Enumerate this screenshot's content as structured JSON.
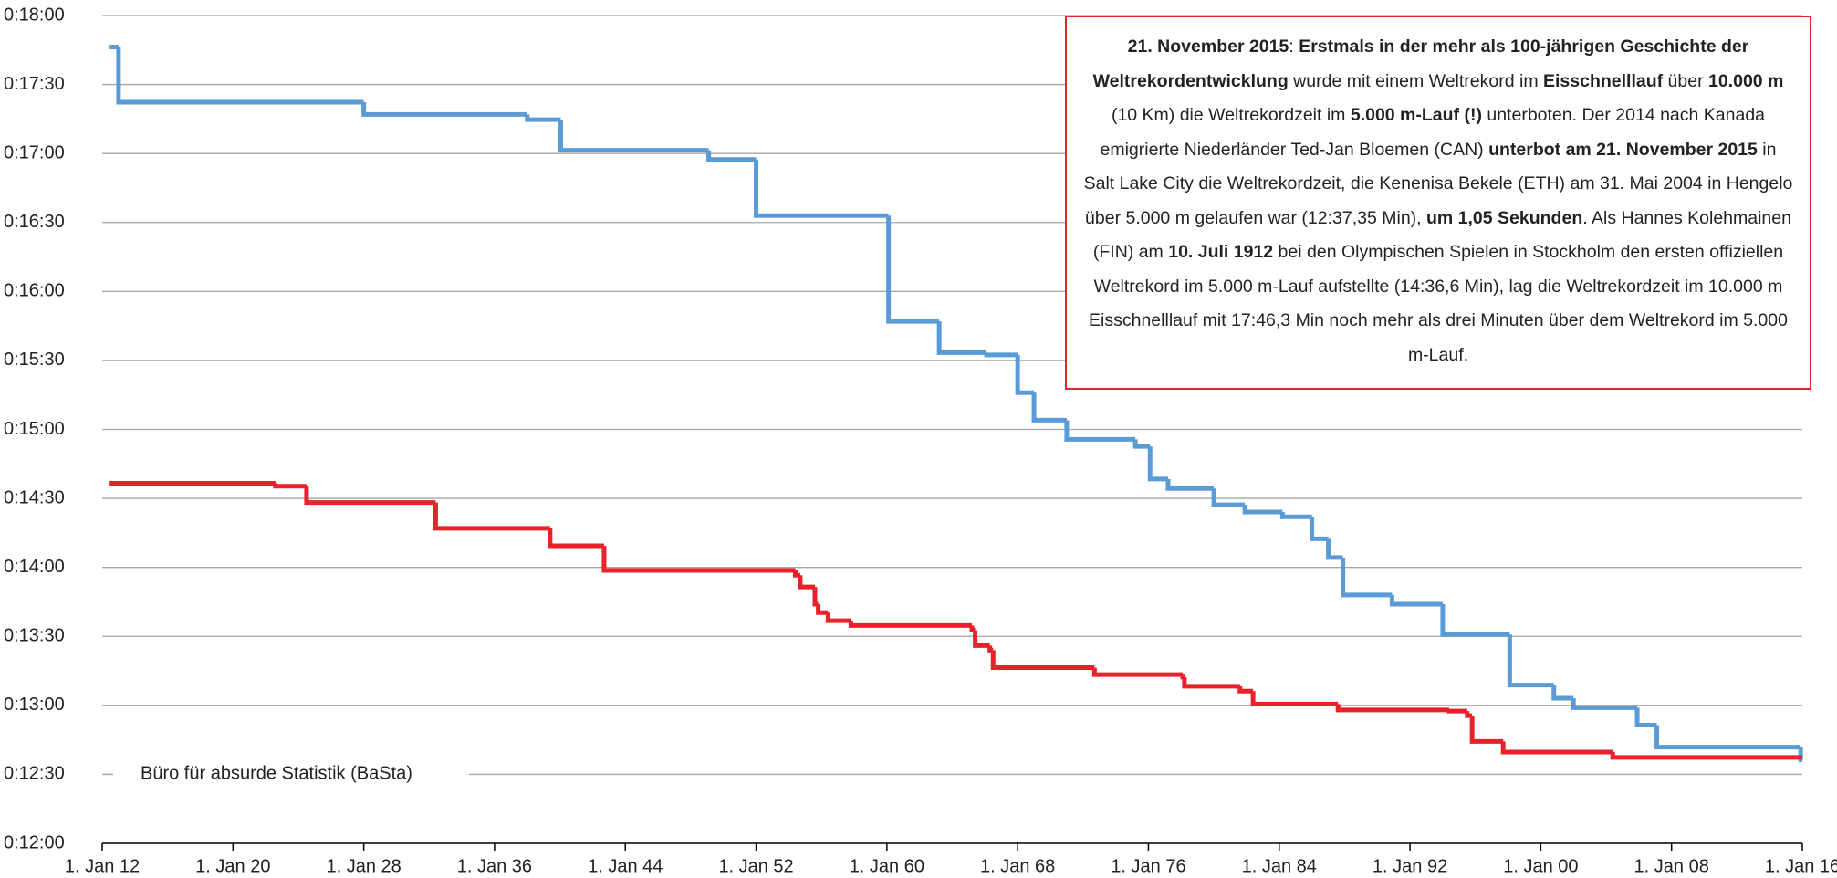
{
  "chart_data": {
    "type": "step-line",
    "xlim": [
      1912,
      2016
    ],
    "xticks": [
      {
        "value": 1912,
        "label": "1. Jan 12"
      },
      {
        "value": 1920,
        "label": "1. Jan 20"
      },
      {
        "value": 1928,
        "label": "1. Jan 28"
      },
      {
        "value": 1936,
        "label": "1. Jan 36"
      },
      {
        "value": 1944,
        "label": "1. Jan 44"
      },
      {
        "value": 1952,
        "label": "1. Jan 52"
      },
      {
        "value": 1960,
        "label": "1. Jan 60"
      },
      {
        "value": 1968,
        "label": "1. Jan 68"
      },
      {
        "value": 1976,
        "label": "1. Jan 76"
      },
      {
        "value": 1984,
        "label": "1. Jan 84"
      },
      {
        "value": 1992,
        "label": "1. Jan 92"
      },
      {
        "value": 2000,
        "label": "1. Jan 00"
      },
      {
        "value": 2008,
        "label": "1. Jan 08"
      },
      {
        "value": 2016,
        "label": "1. Jan 16"
      }
    ],
    "ylim": [
      720,
      1080
    ],
    "yticks": [
      {
        "value": 720,
        "label": "0:12:00"
      },
      {
        "value": 750,
        "label": "0:12:30"
      },
      {
        "value": 780,
        "label": "0:13:00"
      },
      {
        "value": 810,
        "label": "0:13:30"
      },
      {
        "value": 840,
        "label": "0:14:00"
      },
      {
        "value": 870,
        "label": "0:14:30"
      },
      {
        "value": 900,
        "label": "0:15:00"
      },
      {
        "value": 930,
        "label": "0:15:30"
      },
      {
        "value": 960,
        "label": "0:16:00"
      },
      {
        "value": 990,
        "label": "0:16:30"
      },
      {
        "value": 1020,
        "label": "0:17:00"
      },
      {
        "value": 1050,
        "label": "0:17:30"
      },
      {
        "value": 1080,
        "label": "0:18:00"
      }
    ],
    "grid": true,
    "series": [
      {
        "color": "#5b9bd5",
        "x": [
          1912.4,
          1913,
          1928,
          1938,
          1940.05,
          1949.1,
          1952,
          1960.1,
          1963.2,
          1966.1,
          1968,
          1969,
          1971,
          1975.2,
          1976.1,
          1977.2,
          1980,
          1981.9,
          1984.2,
          1986,
          1987,
          1987.9,
          1990.9,
          1994,
          1998.1,
          2000.8,
          2002,
          2005.9,
          2007.1,
          2015.9
        ],
        "values": [
          1066.3,
          1042.3,
          1037,
          1034.7,
          1021.4,
          1017.4,
          993,
          947,
          933.4,
          932.4,
          916,
          904,
          895.7,
          892.6,
          878.4,
          874.3,
          867.2,
          864.1,
          862,
          852.4,
          844.3,
          828,
          824,
          810.8,
          788.8,
          783.1,
          779,
          771.4,
          761.8,
          756.3
        ]
      },
      {
        "color": "#e8212a",
        "x": [
          1912.4,
          1922.6,
          1924.5,
          1932.4,
          1939.4,
          1942.7,
          1954.4,
          1954.7,
          1955.6,
          1955.8,
          1956.4,
          1957.8,
          1965.2,
          1965.4,
          1966.3,
          1966.5,
          1972.7,
          1978.1,
          1978.2,
          1981.6,
          1982.4,
          1987.6,
          1994.4,
          1995.5,
          1995.8,
          1997.7,
          2004.4
        ],
        "values": [
          876.6,
          875.3,
          868.2,
          857,
          849.4,
          838.7,
          836.6,
          831.5,
          824,
          820.3,
          816.8,
          814.7,
          812.7,
          806,
          804,
          796.4,
          793.4,
          792.3,
          788.3,
          786.2,
          780.6,
          778,
          777.5,
          775.5,
          764.3,
          759.7,
          757.35
        ]
      }
    ],
    "watermark": "Büro für absurde Statistik (BaSta)",
    "annotation": [
      {
        "text": "21. November 2015",
        "bold": true
      },
      {
        "text": ": ",
        "bold": false
      },
      {
        "text": "Erstmals in der mehr als 100-jährigen Geschichte der Weltrekordentwicklung",
        "bold": true
      },
      {
        "text": " wurde mit einem Weltrekord im ",
        "bold": false
      },
      {
        "text": "Eisschnelllauf",
        "bold": true
      },
      {
        "text": " über ",
        "bold": false
      },
      {
        "text": "10.000 m",
        "bold": true
      },
      {
        "text": " (10 Km) die Weltrekordzeit im ",
        "bold": false
      },
      {
        "text": "5.000 m-Lauf (!)",
        "bold": true
      },
      {
        "text": " unterboten. Der 2014 nach Kanada emigrierte Niederländer Ted-Jan Bloemen (CAN) ",
        "bold": false
      },
      {
        "text": "unterbot am 21. November 2015",
        "bold": true
      },
      {
        "text": " in Salt Lake City die Weltrekordzeit, die Kenenisa Bekele (ETH) am 31. Mai 2004 in Hengelo über 5.000 m gelaufen war (12:37,35 Min), ",
        "bold": false
      },
      {
        "text": "um 1,05 Sekunden",
        "bold": true
      },
      {
        "text": ". Als Hannes Kolehmainen (FIN) am ",
        "bold": false
      },
      {
        "text": "10. Juli 1912",
        "bold": true
      },
      {
        "text": " bei den Olympischen Spielen in Stockholm den ersten offiziellen Weltrekord im 5.000 m-Lauf aufstellte (14:36,6 Min), lag die Weltrekordzeit im 10.000 m Eisschnelllauf mit 17:46,3 Min noch mehr als drei Minuten über dem Weltrekord im 5.000 m-Lauf.",
        "bold": false
      }
    ]
  }
}
